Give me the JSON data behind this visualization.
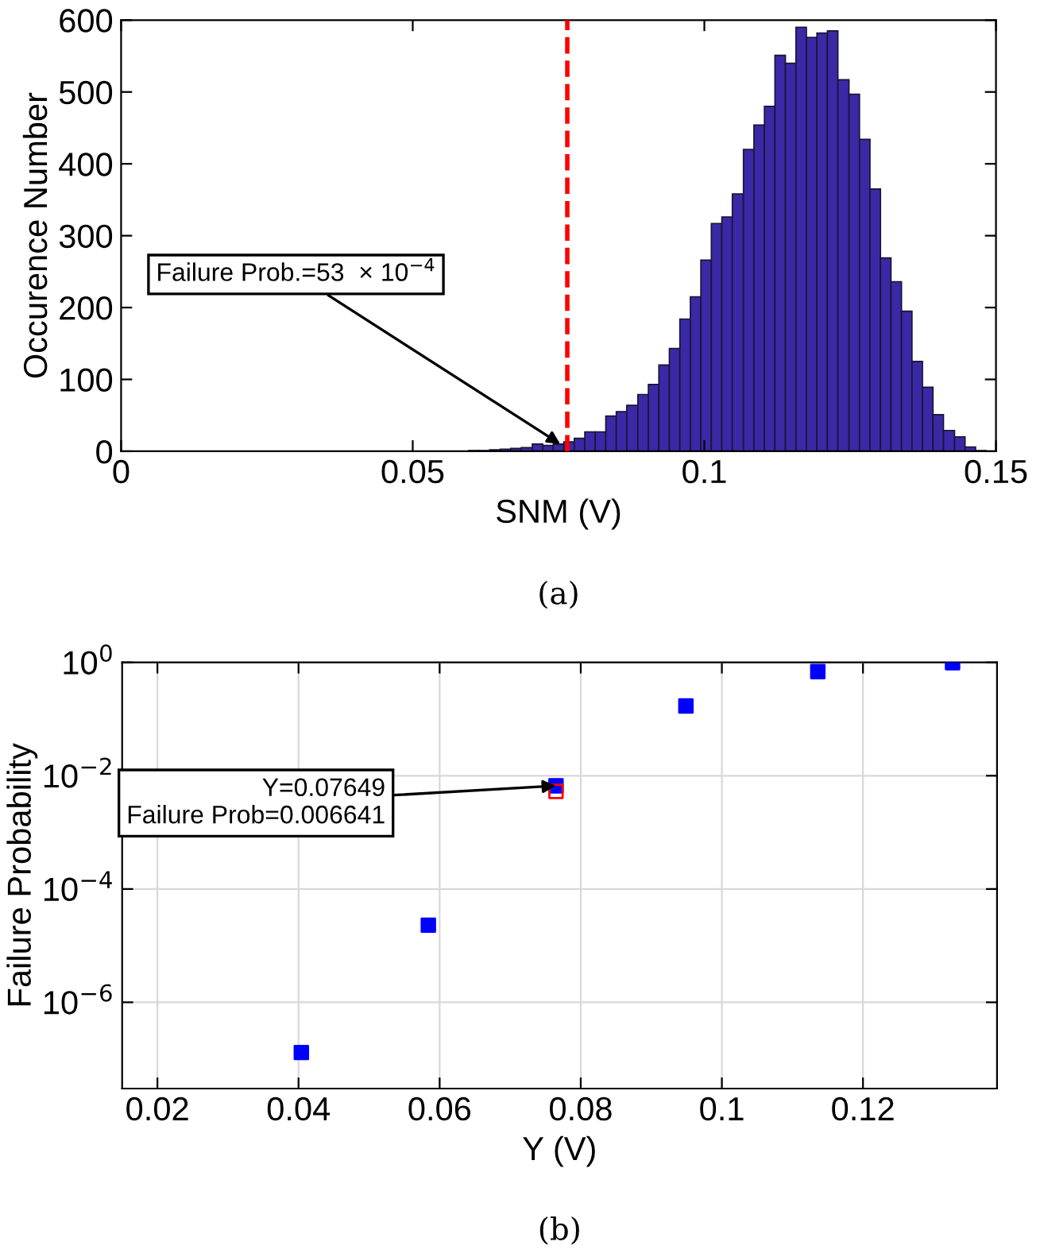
{
  "chart_data": [
    {
      "type": "histogram",
      "xlabel": "SNM (V)",
      "ylabel": "Occurence Number",
      "color": "#3b28a6",
      "bins": [
        0.0596,
        0.0614,
        0.0632,
        0.065,
        0.0668,
        0.0686,
        0.0705,
        0.0723,
        0.0741,
        0.0759,
        0.0777,
        0.0795,
        0.0813,
        0.0831,
        0.0849,
        0.0867,
        0.0886,
        0.0904,
        0.0922,
        0.094,
        0.0958,
        0.0976,
        0.0994,
        0.1012,
        0.103,
        0.1048,
        0.1067,
        0.1085,
        0.1103,
        0.1121,
        0.1139,
        0.1157,
        0.1175,
        0.1193,
        0.1211,
        0.1229,
        0.1248,
        0.1266,
        0.1284,
        0.1302,
        0.132,
        0.1338,
        0.1356,
        0.1374,
        0.1392,
        0.141,
        0.1429,
        0.1447,
        0.1465,
        0.1483
      ],
      "values": [
        1,
        1,
        2,
        3,
        4,
        5,
        10,
        8,
        10,
        13,
        18,
        27,
        27,
        49,
        55,
        64,
        79,
        93,
        120,
        143,
        184,
        215,
        266,
        317,
        326,
        358,
        420,
        454,
        480,
        551,
        540,
        590,
        576,
        582,
        585,
        517,
        497,
        434,
        365,
        269,
        236,
        195,
        125,
        89,
        51,
        29,
        20,
        6,
        1
      ],
      "xlim": [
        0,
        0.15
      ],
      "xticks": [
        0,
        0.05,
        0.1,
        0.15
      ],
      "ylim": [
        0,
        600
      ],
      "yticks": [
        0,
        100,
        200,
        300,
        400,
        500,
        600
      ],
      "grid": false,
      "legend": false,
      "ref_lines": [
        {
          "axis": "x",
          "value": 0.0765,
          "color": "#ff0000",
          "line_style": "dashed"
        }
      ],
      "annotations": [
        {
          "text": "Failure Prob.=53  × 10$^{−4}$",
          "x": 0.0753,
          "y": 10
        },
        "(a)"
      ]
    },
    {
      "type": "scatter",
      "xlabel": "Y (V)",
      "ylabel": "Failure Probability",
      "log": "y",
      "marker": "square",
      "grid": true,
      "legend": false,
      "series": [
        {
          "color": "#0000ff",
          "x": [
            0.0404,
            0.0584,
            0.07649,
            0.0949,
            0.1136,
            0.1327
          ],
          "values": [
            1.3e-07,
            2.3e-05,
            0.006641,
            0.17,
            0.69,
            0.99
          ]
        },
        {
          "color": "#ff0000",
          "x": [
            0.07649
          ],
          "values": [
            0.0053
          ]
        }
      ],
      "xlim": [
        0.015,
        0.139
      ],
      "xticks": [
        0.02,
        0.04,
        0.06,
        0.08,
        0.1,
        0.12
      ],
      "ylim": [
        3e-08,
        1
      ],
      "yticks": [
        {
          "value": 1e-06,
          "label": "10$^{−6}$"
        },
        {
          "value": 0.0001,
          "label": "10$^{−4}$"
        },
        {
          "value": 0.01,
          "label": "10$^{−2}$"
        },
        {
          "value": 1,
          "label": "10$^{0}$"
        }
      ],
      "annotations": [
        {
          "text": "Y=0.07649\nFailure Prob=0.006641",
          "x": 0.07649,
          "y": 0.006641
        },
        "(b)"
      ]
    }
  ]
}
